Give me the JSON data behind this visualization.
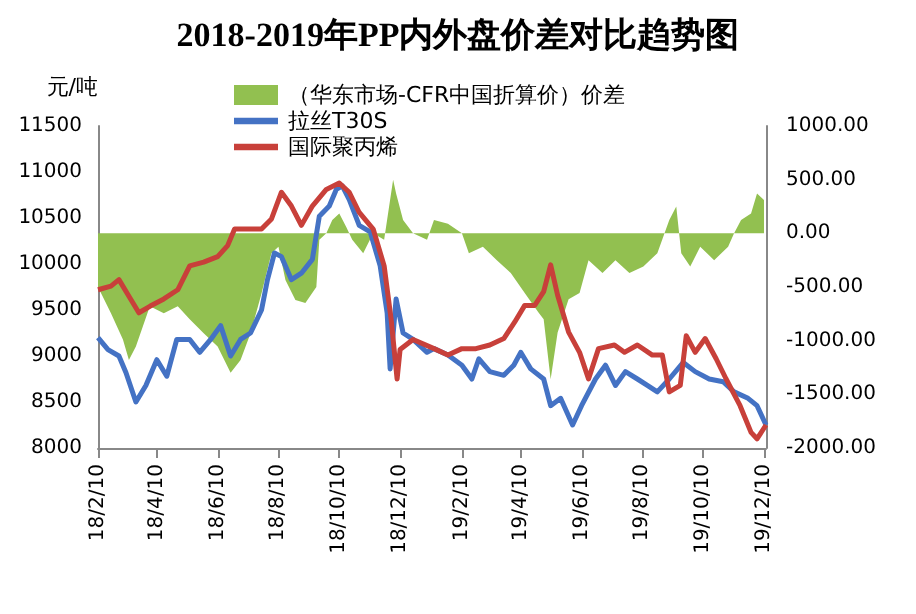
{
  "chart_data": {
    "type": "line",
    "title": "2018-2019年PP内外盘价差对比趋势图",
    "ylabel": "元/吨",
    "legend": "top left",
    "marker": "none",
    "grid": false,
    "xlim": [
      "2018-02-10",
      "2019-12-12"
    ],
    "xticks": [
      {
        "value": "2018-02-10",
        "label": "18/2/10"
      },
      {
        "value": "2018-04-10",
        "label": "18/4/10"
      },
      {
        "value": "2018-06-10",
        "label": "18/6/10"
      },
      {
        "value": "2018-08-10",
        "label": "18/8/10"
      },
      {
        "value": "2018-10-10",
        "label": "18/10/10"
      },
      {
        "value": "2018-12-10",
        "label": "18/12/10"
      },
      {
        "value": "2019-02-10",
        "label": "19/2/10"
      },
      {
        "value": "2019-04-10",
        "label": "19/4/10"
      },
      {
        "value": "2019-06-10",
        "label": "19/6/10"
      },
      {
        "value": "2019-08-10",
        "label": "19/8/10"
      },
      {
        "value": "2019-10-10",
        "label": "19/10/10"
      },
      {
        "value": "2019-12-10",
        "label": "19/12/10"
      }
    ],
    "ylim": [
      8000,
      11500
    ],
    "yticks": [
      8000,
      8500,
      9000,
      9500,
      10000,
      10500,
      11000,
      11500
    ],
    "y2lim": [
      -2000,
      1000
    ],
    "y2ticks": [
      {
        "value": -2000,
        "label": "-2000.00"
      },
      {
        "value": -1500,
        "label": "-1500.00"
      },
      {
        "value": -1000,
        "label": "-1000.00"
      },
      {
        "value": -500,
        "label": "-500.00"
      },
      {
        "value": 0,
        "label": "0.00"
      },
      {
        "value": 500,
        "label": "500.00"
      },
      {
        "value": 1000,
        "label": "1000.00"
      }
    ],
    "series": [
      {
        "name": "（华东市场-CFR中国折算价）价差",
        "type": "area",
        "axis": "y2",
        "color": "#92c050",
        "x": [
          "2018-02-10",
          "2018-02-23",
          "2018-03-07",
          "2018-03-13",
          "2018-03-20",
          "2018-04-03",
          "2018-04-17",
          "2018-05-01",
          "2018-05-13",
          "2018-05-27",
          "2018-06-10",
          "2018-06-23",
          "2018-07-03",
          "2018-07-13",
          "2018-07-24",
          "2018-08-03",
          "2018-08-10",
          "2018-08-17",
          "2018-08-27",
          "2018-09-06",
          "2018-09-17",
          "2018-09-20",
          "2018-09-27",
          "2018-10-03",
          "2018-10-10",
          "2018-10-17",
          "2018-10-23",
          "2018-11-03",
          "2018-11-13",
          "2018-11-24",
          "2018-12-03",
          "2018-12-06",
          "2018-12-13",
          "2018-12-23",
          "2019-01-06",
          "2019-01-13",
          "2019-01-27",
          "2019-02-10",
          "2019-02-17",
          "2019-03-03",
          "2019-03-17",
          "2019-03-31",
          "2019-04-14",
          "2019-04-28",
          "2019-05-03",
          "2019-05-10",
          "2019-05-17",
          "2019-05-28",
          "2019-06-08",
          "2019-06-17",
          "2019-07-01",
          "2019-07-14",
          "2019-07-28",
          "2019-08-11",
          "2019-08-25",
          "2019-09-06",
          "2019-09-13",
          "2019-09-18",
          "2019-09-27",
          "2019-10-07",
          "2019-10-21",
          "2019-11-04",
          "2019-11-10",
          "2019-11-17",
          "2019-11-27",
          "2019-12-03",
          "2019-12-10"
        ],
        "values": [
          -500,
          -745,
          -990,
          -1180,
          -1055,
          -680,
          -745,
          -680,
          -800,
          -930,
          -1055,
          -1300,
          -1180,
          -930,
          -560,
          -185,
          -125,
          -435,
          -620,
          -650,
          -500,
          -60,
          0,
          125,
          185,
          60,
          -60,
          -185,
          0,
          -60,
          500,
          370,
          125,
          0,
          -60,
          125,
          90,
          0,
          -185,
          -125,
          -250,
          -370,
          -555,
          -740,
          -800,
          -1360,
          -925,
          -615,
          -555,
          -250,
          -370,
          -250,
          -370,
          -310,
          -185,
          125,
          250,
          -185,
          -310,
          -125,
          -250,
          -125,
          0,
          125,
          185,
          370,
          310
        ]
      },
      {
        "name": "拉丝T30S",
        "type": "line",
        "color": "#4472c4",
        "x": [
          "2018-02-10",
          "2018-02-20",
          "2018-03-03",
          "2018-03-10",
          "2018-03-20",
          "2018-03-30",
          "2018-04-10",
          "2018-04-20",
          "2018-04-30",
          "2018-05-13",
          "2018-05-23",
          "2018-06-03",
          "2018-06-13",
          "2018-06-23",
          "2018-07-03",
          "2018-07-13",
          "2018-07-24",
          "2018-07-30",
          "2018-08-06",
          "2018-08-13",
          "2018-08-23",
          "2018-09-02",
          "2018-09-13",
          "2018-09-20",
          "2018-09-30",
          "2018-10-07",
          "2018-10-13",
          "2018-10-20",
          "2018-10-30",
          "2018-11-10",
          "2018-11-20",
          "2018-11-27",
          "2018-11-30",
          "2018-12-06",
          "2018-12-13",
          "2018-12-23",
          "2019-01-06",
          "2019-01-13",
          "2019-01-27",
          "2019-02-10",
          "2019-02-20",
          "2019-02-27",
          "2019-03-10",
          "2019-03-24",
          "2019-04-03",
          "2019-04-10",
          "2019-04-20",
          "2019-05-03",
          "2019-05-10",
          "2019-05-20",
          "2019-06-01",
          "2019-06-10",
          "2019-06-24",
          "2019-07-04",
          "2019-07-14",
          "2019-07-24",
          "2019-08-05",
          "2019-08-15",
          "2019-08-25",
          "2019-09-06",
          "2019-09-20",
          "2019-10-02",
          "2019-10-16",
          "2019-10-30",
          "2019-11-10",
          "2019-11-24",
          "2019-12-03",
          "2019-12-12"
        ],
        "values": [
          9200,
          9070,
          9000,
          8820,
          8500,
          8680,
          8960,
          8780,
          9180,
          9180,
          9040,
          9180,
          9330,
          9000,
          9180,
          9250,
          9500,
          9830,
          10120,
          10080,
          9830,
          9900,
          10050,
          10520,
          10630,
          10810,
          10850,
          10700,
          10420,
          10350,
          9980,
          9470,
          8860,
          9620,
          9250,
          9180,
          9040,
          9080,
          9010,
          8900,
          8750,
          8970,
          8830,
          8790,
          8900,
          9040,
          8860,
          8750,
          8460,
          8540,
          8250,
          8460,
          8750,
          8900,
          8680,
          8830,
          8750,
          8680,
          8610,
          8750,
          8930,
          8830,
          8750,
          8720,
          8610,
          8540,
          8460,
          8250
        ]
      },
      {
        "name": "国际聚丙烯",
        "type": "line",
        "color": "#c8403a",
        "x": [
          "2018-02-10",
          "2018-02-23",
          "2018-03-03",
          "2018-03-13",
          "2018-03-23",
          "2018-04-03",
          "2018-04-17",
          "2018-05-01",
          "2018-05-13",
          "2018-05-27",
          "2018-06-10",
          "2018-06-20",
          "2018-06-27",
          "2018-07-10",
          "2018-07-24",
          "2018-08-03",
          "2018-08-13",
          "2018-08-23",
          "2018-09-02",
          "2018-09-13",
          "2018-09-27",
          "2018-10-10",
          "2018-10-20",
          "2018-10-30",
          "2018-11-13",
          "2018-11-24",
          "2018-12-01",
          "2018-12-07",
          "2018-12-10",
          "2018-12-23",
          "2019-01-13",
          "2019-01-27",
          "2019-02-10",
          "2019-02-24",
          "2019-03-10",
          "2019-03-24",
          "2019-04-04",
          "2019-04-14",
          "2019-04-24",
          "2019-05-03",
          "2019-05-10",
          "2019-05-17",
          "2019-05-28",
          "2019-06-08",
          "2019-06-17",
          "2019-06-27",
          "2019-07-13",
          "2019-07-23",
          "2019-08-05",
          "2019-08-20",
          "2019-08-30",
          "2019-09-06",
          "2019-09-17",
          "2019-09-23",
          "2019-10-02",
          "2019-10-12",
          "2019-10-23",
          "2019-11-02",
          "2019-11-16",
          "2019-11-27",
          "2019-12-03",
          "2019-12-12"
        ],
        "values": [
          9720,
          9760,
          9830,
          9650,
          9470,
          9540,
          9620,
          9720,
          9980,
          10020,
          10080,
          10200,
          10380,
          10380,
          10380,
          10490,
          10780,
          10630,
          10420,
          10630,
          10810,
          10880,
          10780,
          10560,
          10380,
          9980,
          9400,
          8750,
          9070,
          9180,
          9080,
          9010,
          9080,
          9080,
          9120,
          9190,
          9370,
          9550,
          9550,
          9700,
          9990,
          9660,
          9260,
          9040,
          8750,
          9080,
          9120,
          9040,
          9120,
          9010,
          9010,
          8610,
          8680,
          9220,
          9040,
          9190,
          8970,
          8750,
          8460,
          8170,
          8100,
          8250
        ]
      }
    ]
  }
}
